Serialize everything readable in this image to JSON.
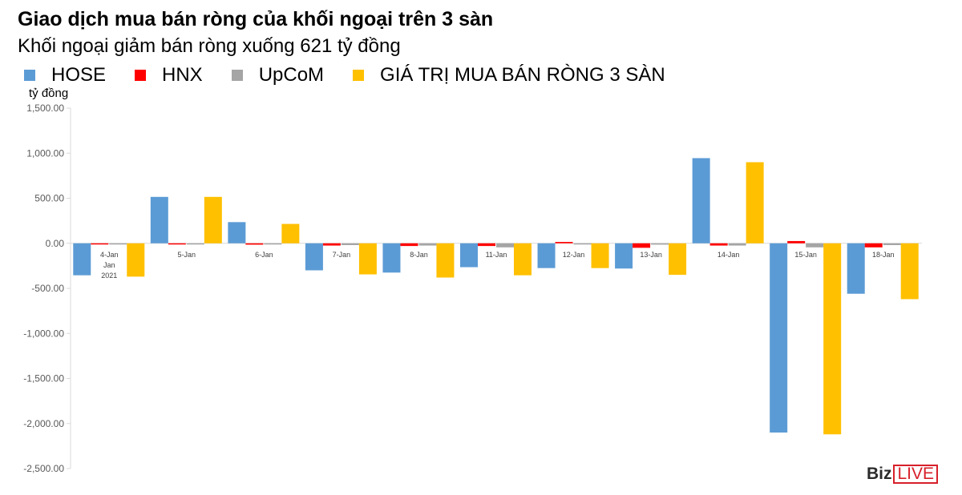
{
  "header": {
    "title": "Giao dịch mua bán ròng của khối ngoại trên 3 sàn",
    "subtitle": "Khối ngoại giảm bán ròng xuống 621 tỷ đồng",
    "unit_label": "tỷ đồng"
  },
  "brand": {
    "part1": "Biz",
    "part2": "LIVE"
  },
  "chart_data": {
    "type": "bar",
    "title": "Giao dịch mua bán ròng của khối ngoại trên 3 sàn",
    "subtitle": "Khối ngoại giảm bán ròng xuống 621 tỷ đồng",
    "ylabel": "tỷ đồng",
    "ylim": [
      -2500,
      1500
    ],
    "yticks": [
      1500,
      1000,
      500,
      0,
      -500,
      -1000,
      -1500,
      -2000,
      -2500
    ],
    "ytick_labels": [
      "1,500.00",
      "1,000.00",
      "500.00",
      "0.00",
      "-500.00",
      "-1,000.00",
      "-1,500.00",
      "-2,000.00",
      "-2,500.00"
    ],
    "categories": [
      "4-Jan",
      "5-Jan",
      "6-Jan",
      "7-Jan",
      "8-Jan",
      "11-Jan",
      "12-Jan",
      "13-Jan",
      "14-Jan",
      "15-Jan",
      "18-Jan"
    ],
    "category_group_label": [
      "Jan",
      "2021"
    ],
    "legend_position": "top-left",
    "grid": false,
    "series": [
      {
        "name": "HOSE",
        "color": "#5b9bd5",
        "values": [
          -355,
          515,
          235,
          -300,
          -325,
          -265,
          -275,
          -280,
          945,
          -2100,
          -560
        ]
      },
      {
        "name": "HNX",
        "color": "#ff0000",
        "values": [
          -5,
          -5,
          -15,
          -25,
          -30,
          -30,
          15,
          -50,
          -25,
          25,
          -45
        ]
      },
      {
        "name": "UpCoM",
        "color": "#a5a5a5",
        "values": [
          -8,
          0,
          -3,
          -20,
          -25,
          -45,
          -5,
          -15,
          -25,
          -45,
          -20
        ]
      },
      {
        "name": "GIÁ TRỊ MUA BÁN RÒNG 3 SÀN",
        "color": "#ffc000",
        "values": [
          -370,
          515,
          215,
          -345,
          -380,
          -355,
          -275,
          -350,
          900,
          -2120,
          -620
        ]
      }
    ]
  }
}
